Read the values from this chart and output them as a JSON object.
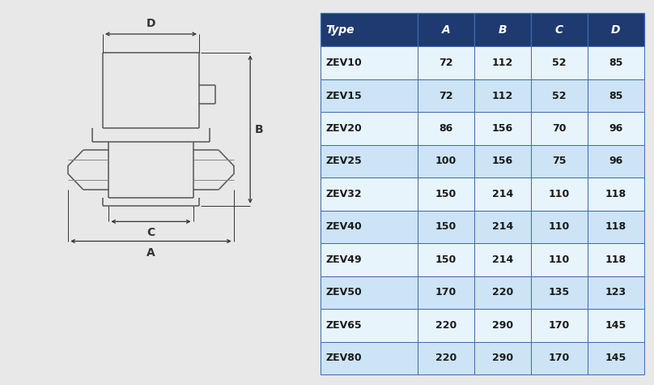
{
  "table_headers": [
    "Type",
    "A",
    "B",
    "C",
    "D"
  ],
  "table_data": [
    [
      "ZEV10",
      "72",
      "112",
      "52",
      "85"
    ],
    [
      "ZEV15",
      "72",
      "112",
      "52",
      "85"
    ],
    [
      "ZEV20",
      "86",
      "156",
      "70",
      "96"
    ],
    [
      "ZEV25",
      "100",
      "156",
      "75",
      "96"
    ],
    [
      "ZEV32",
      "150",
      "214",
      "110",
      "118"
    ],
    [
      "ZEV40",
      "150",
      "214",
      "110",
      "118"
    ],
    [
      "ZEV49",
      "150",
      "214",
      "110",
      "118"
    ],
    [
      "ZEV50",
      "170",
      "220",
      "135",
      "123"
    ],
    [
      "ZEV65",
      "220",
      "290",
      "170",
      "145"
    ],
    [
      "ZEV80",
      "220",
      "290",
      "170",
      "145"
    ]
  ],
  "header_bg": "#1e3a70",
  "header_fg": "#ffffff",
  "row_bg_odd": "#cce4f5",
  "row_bg_even": "#e8f4fb",
  "border_color": "#3a6aad",
  "bg_color": "#e8e8e8",
  "diagram_bg": "#e8e8e8",
  "draw_color": "#555555",
  "dim_color": "#333333"
}
